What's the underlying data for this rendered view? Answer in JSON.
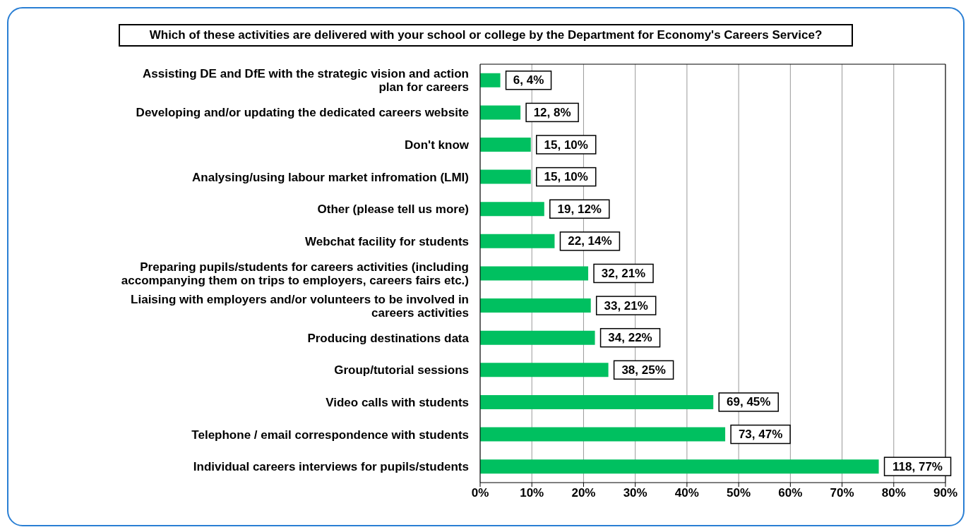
{
  "chart_data": {
    "type": "bar",
    "orientation": "horizontal",
    "title": "Which of these activities are delivered with your school or college by the Department for Economy's Careers Service?",
    "categories": [
      "Assisting DE and DfE with the strategic vision and action plan for careers",
      "Developing and/or updating the dedicated careers website",
      "Don't know",
      "Analysing/using labour market infromation (LMI)",
      "Other (please tell us more)",
      "Webchat facility for students",
      "Preparing pupils/students for careers activities (including accompanying them on trips to employers, careers fairs etc.)",
      "Liaising with employers and/or volunteers to be involved in careers activities",
      "Producing destinations data",
      "Group/tutorial sessions",
      "Video calls with students",
      "Telephone / email correspondence with students",
      "Individual careers interviews for pupils/students"
    ],
    "values": [
      3.9,
      7.8,
      9.8,
      9.8,
      12.4,
      14.4,
      20.9,
      21.4,
      22.2,
      24.8,
      45.1,
      47.4,
      77.1
    ],
    "value_labels": [
      "6, 4%",
      "12, 8%",
      "15, 10%",
      "15, 10%",
      "19, 12%",
      "22, 14%",
      "32, 21%",
      "33, 21%",
      "34, 22%",
      "38, 25%",
      "69, 45%",
      "73, 47%",
      "118, 77%"
    ],
    "color": "#00c060",
    "xlim": [
      0,
      90
    ],
    "xticks": [
      {
        "value": 0,
        "label": "0%"
      },
      {
        "value": 10,
        "label": "10%"
      },
      {
        "value": 20,
        "label": "20%"
      },
      {
        "value": 30,
        "label": "30%"
      },
      {
        "value": 40,
        "label": "40%"
      },
      {
        "value": 50,
        "label": "50%"
      },
      {
        "value": 60,
        "label": "60%"
      },
      {
        "value": 70,
        "label": "70%"
      },
      {
        "value": 80,
        "label": "80%"
      },
      {
        "value": 90,
        "label": "90%"
      }
    ],
    "grid": "x",
    "legend": false
  }
}
